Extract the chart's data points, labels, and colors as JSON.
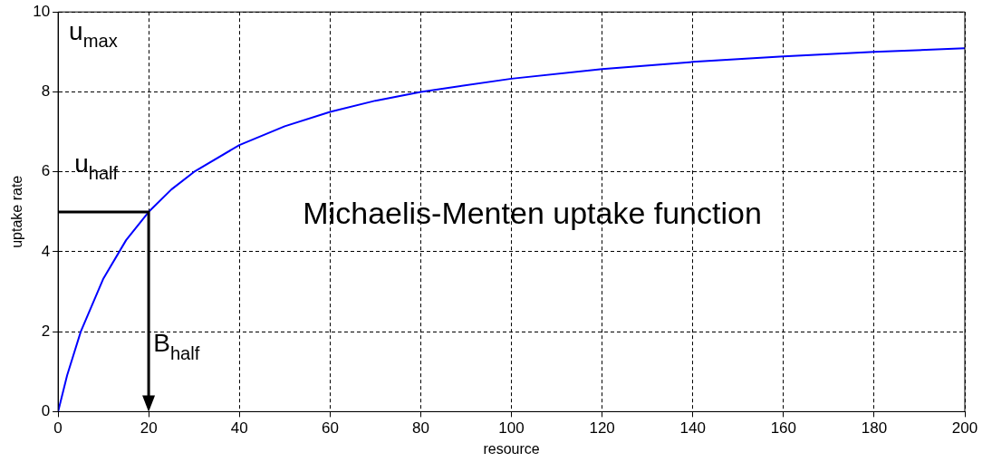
{
  "chart_data": {
    "type": "line",
    "xlabel": "resource",
    "ylabel": "uptake rate",
    "xlim": [
      0,
      200
    ],
    "xticks": [
      0,
      20,
      40,
      60,
      80,
      100,
      120,
      140,
      160,
      180,
      200
    ],
    "ylim": [
      0,
      10
    ],
    "yticks": [
      0,
      2,
      4,
      6,
      8,
      10
    ],
    "grid": true,
    "marker": "none",
    "series": [
      {
        "color": "#0000ff",
        "x": [
          0,
          2,
          5,
          10,
          15,
          20,
          25,
          30,
          40,
          50,
          60,
          70,
          80,
          100,
          120,
          140,
          160,
          180,
          200
        ],
        "values": [
          0,
          0.91,
          2.0,
          3.33,
          4.29,
          5.0,
          5.56,
          6.0,
          6.67,
          7.14,
          7.5,
          7.78,
          8.0,
          8.33,
          8.57,
          8.75,
          8.89,
          9.0,
          9.09
        ]
      }
    ],
    "annotations": [
      "u$_{max}$",
      "u$_{half}$",
      "B$_{half}$",
      "Michaelis-Menten uptake function"
    ]
  }
}
